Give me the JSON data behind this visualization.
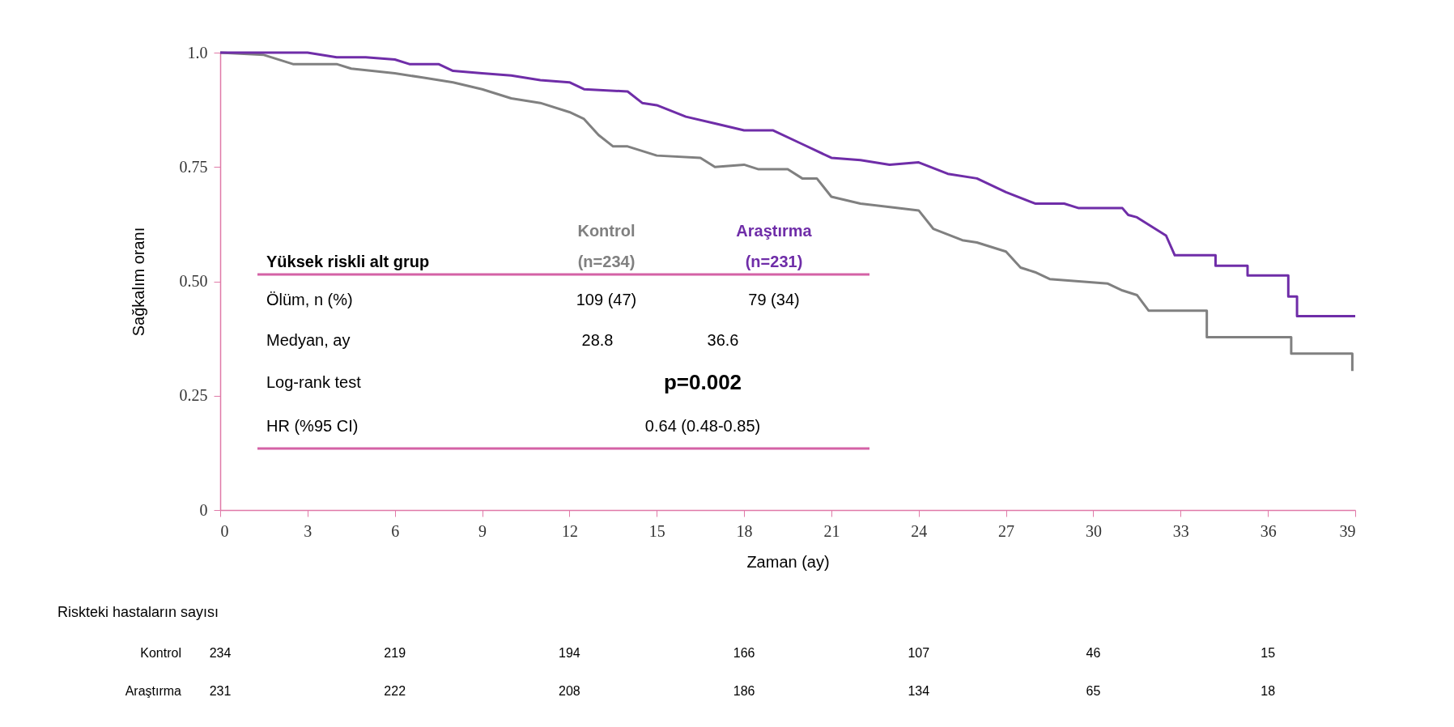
{
  "chart_data": {
    "type": "line",
    "xlabel": "Zaman (ay)",
    "ylabel": "Sağkalım oranı",
    "xlim": [
      0,
      39
    ],
    "ylim": [
      0,
      1
    ],
    "xticks": [
      0,
      3,
      6,
      9,
      12,
      15,
      18,
      21,
      24,
      27,
      30,
      33,
      36,
      39
    ],
    "yticks": [
      0,
      0.25,
      {
        "value": 0.5,
        "label": "0.50"
      },
      0.75,
      {
        "value": 1,
        "label": "1.0"
      }
    ],
    "grid": false,
    "legend": false,
    "line_style": "solid",
    "series": [
      {
        "name": "Kontrol",
        "color": "#808080",
        "x": [
          0,
          1.5,
          2.5,
          4,
          4.5,
          6,
          7,
          8,
          9,
          10,
          11,
          12,
          12.5,
          13,
          13.5,
          14,
          15,
          16.5,
          17,
          18,
          18.5,
          19.5,
          20,
          20.5,
          21,
          22,
          24,
          24.5,
          25.5,
          26,
          27,
          27.5,
          28,
          28.5,
          29.5,
          30.5,
          31,
          31.5,
          31.9,
          33.9,
          33.9,
          36.8,
          36.8,
          38.9,
          38.9
        ],
        "values": [
          1,
          0.995,
          0.975,
          0.975,
          0.965,
          0.955,
          0.945,
          0.935,
          0.92,
          0.9,
          0.89,
          0.87,
          0.855,
          0.82,
          0.795,
          0.795,
          0.775,
          0.77,
          0.75,
          0.755,
          0.745,
          0.745,
          0.725,
          0.725,
          0.685,
          0.67,
          0.655,
          0.615,
          0.59,
          0.585,
          0.565,
          0.53,
          0.52,
          0.505,
          0.5,
          0.495,
          0.48,
          0.47,
          0.436,
          0.436,
          0.378,
          0.378,
          0.342,
          0.342,
          0.304
        ]
      },
      {
        "name": "Araştırma",
        "color": "#6f2da8",
        "x": [
          0,
          3,
          4,
          5,
          6,
          6.5,
          7.5,
          8,
          9,
          10,
          11,
          12,
          12.5,
          14,
          14.5,
          15,
          16,
          17,
          18,
          19,
          20,
          21,
          22,
          23,
          24,
          25,
          26,
          27,
          28,
          29,
          29.5,
          31,
          31.2,
          31.5,
          32,
          32.5,
          32.8,
          34.2,
          34.2,
          35.3,
          35.3,
          36.7,
          36.7,
          37,
          37,
          39
        ],
        "values": [
          1,
          1,
          0.99,
          0.99,
          0.985,
          0.975,
          0.975,
          0.96,
          0.955,
          0.95,
          0.94,
          0.935,
          0.92,
          0.915,
          0.89,
          0.885,
          0.86,
          0.845,
          0.83,
          0.83,
          0.8,
          0.77,
          0.765,
          0.755,
          0.76,
          0.735,
          0.725,
          0.695,
          0.67,
          0.67,
          0.66,
          0.66,
          0.645,
          0.64,
          0.62,
          0.6,
          0.557,
          0.557,
          0.534,
          0.534,
          0.513,
          0.513,
          0.467,
          0.467,
          0.424,
          0.424
        ]
      }
    ],
    "annotations": [
      "Yüksek riskli alt grup",
      "(n=234)",
      "(n=231)",
      "Ölüm, n (%)",
      "109 (47)",
      "79 (34)",
      "Medyan, ay",
      "28.8",
      "36.6",
      "Log-rank test",
      "p=0.002",
      "HR (%95 CI)",
      "0.64 (0.48-0.85)",
      "Riskteki hastaların sayısı",
      "234",
      "219",
      "194",
      "166",
      "107",
      "46",
      "15",
      "231",
      "222",
      "208",
      "186",
      "134",
      "65",
      "18"
    ]
  }
}
